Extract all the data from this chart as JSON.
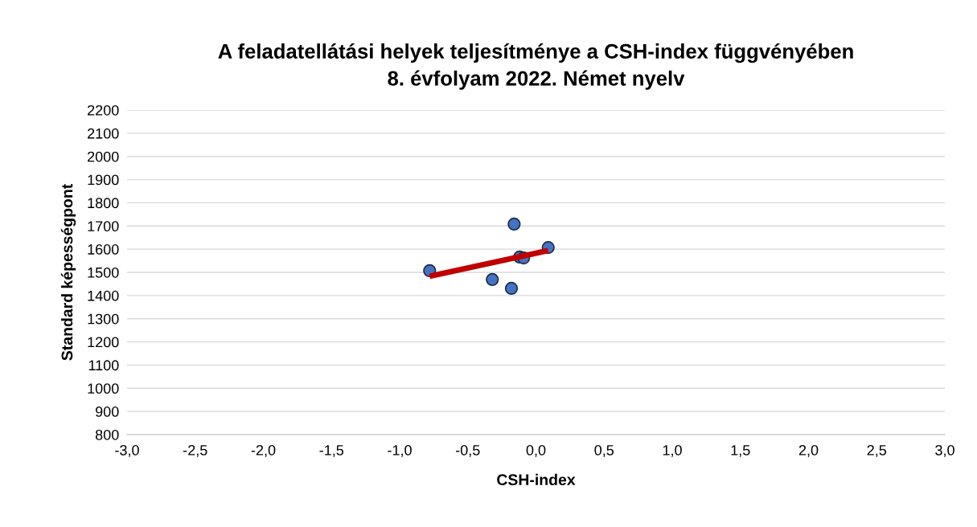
{
  "chart_data": {
    "type": "scatter",
    "title": "A feladatellátási helyek teljesítménye a CSH-index függvényében\n8. évfolyam 2022. Német nyelv",
    "xlabel": "CSH-index",
    "ylabel": "Standard képességpont",
    "series": [
      {
        "color": "#4472c4",
        "marker": "circle",
        "x": [
          -0.78,
          -0.16,
          -0.32,
          -0.18,
          -0.12,
          -0.09,
          0.09
        ],
        "values": [
          1507,
          1708,
          1469,
          1431,
          1566,
          1562,
          1607
        ]
      },
      {
        "type": "line",
        "color": "#c00000",
        "marker": "none",
        "x": [
          -0.78,
          0.09
        ],
        "values": [
          1483,
          1594
        ]
      }
    ],
    "xlim": [
      -3,
      3
    ],
    "xticks": [
      {
        "value": -3,
        "label": "-3,0"
      },
      {
        "value": -2.5,
        "label": "-2,5"
      },
      {
        "value": -2,
        "label": "-2,0"
      },
      {
        "value": -1.5,
        "label": "-1,5"
      },
      {
        "value": -1,
        "label": "-1,0"
      },
      {
        "value": -0.5,
        "label": "-0,5"
      },
      {
        "value": 0,
        "label": "0,0"
      },
      {
        "value": 0.5,
        "label": "0,5"
      },
      {
        "value": 1,
        "label": "1,0"
      },
      {
        "value": 1.5,
        "label": "1,5"
      },
      {
        "value": 2,
        "label": "2,0"
      },
      {
        "value": 2.5,
        "label": "2,5"
      },
      {
        "value": 3,
        "label": "3,0"
      }
    ],
    "ylim": [
      800,
      2200
    ],
    "yticks": [
      800,
      900,
      1000,
      1100,
      1200,
      1300,
      1400,
      1500,
      1600,
      1700,
      1800,
      1900,
      2000,
      2100,
      2200
    ],
    "grid": "y"
  }
}
